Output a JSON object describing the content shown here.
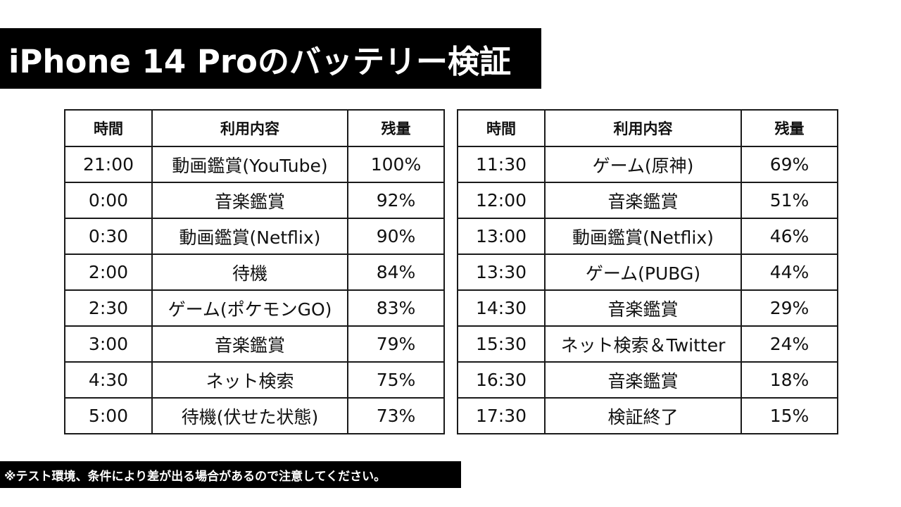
{
  "title": "iPhone 14 Proのバッテリー検証",
  "headers": {
    "time": "時間",
    "usage": "利用内容",
    "remaining": "残量"
  },
  "left_rows": [
    {
      "time": "21:00",
      "usage": "動画鑑賞(YouTube)",
      "remaining": "100%"
    },
    {
      "time": "0:00",
      "usage": "音楽鑑賞",
      "remaining": "92%"
    },
    {
      "time": "0:30",
      "usage": "動画鑑賞(Netflix)",
      "remaining": "90%"
    },
    {
      "time": "2:00",
      "usage": "待機",
      "remaining": "84%"
    },
    {
      "time": "2:30",
      "usage": "ゲーム(ポケモンGO)",
      "remaining": "83%"
    },
    {
      "time": "3:00",
      "usage": "音楽鑑賞",
      "remaining": "79%"
    },
    {
      "time": "4:30",
      "usage": "ネット検索",
      "remaining": "75%"
    },
    {
      "time": "5:00",
      "usage": "待機(伏せた状態)",
      "remaining": "73%"
    }
  ],
  "right_rows": [
    {
      "time": "11:30",
      "usage": "ゲーム(原神)",
      "remaining": "69%"
    },
    {
      "time": "12:00",
      "usage": "音楽鑑賞",
      "remaining": "51%"
    },
    {
      "time": "13:00",
      "usage": "動画鑑賞(Netflix)",
      "remaining": "46%"
    },
    {
      "time": "13:30",
      "usage": "ゲーム(PUBG)",
      "remaining": "44%"
    },
    {
      "time": "14:30",
      "usage": "音楽鑑賞",
      "remaining": "29%"
    },
    {
      "time": "15:30",
      "usage": "ネット検索＆Twitter",
      "remaining": "24%"
    },
    {
      "time": "16:30",
      "usage": "音楽鑑賞",
      "remaining": "18%"
    },
    {
      "time": "17:30",
      "usage": "検証終了",
      "remaining": "15%"
    }
  ],
  "footnote": "※テスト環境、条件により差が出る場合があるので注意してください。"
}
